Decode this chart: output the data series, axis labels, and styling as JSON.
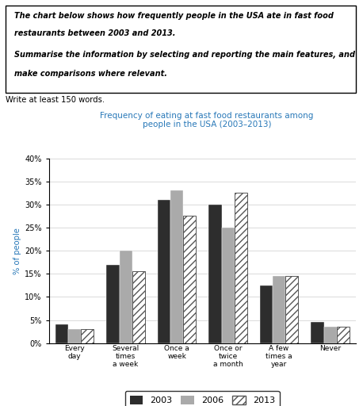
{
  "title_line1": "Frequency of eating at fast food restaurants among",
  "title_line2": "people in the USA (2003–2013)",
  "ylabel": "% of people",
  "categories": [
    "Every\nday",
    "Several\ntimes\na week",
    "Once a\nweek",
    "Once or\ntwice\na month",
    "A few\ntimes a\nyear",
    "Never"
  ],
  "data_2003": [
    4,
    17,
    31,
    30,
    12.5,
    4.5
  ],
  "data_2006": [
    3,
    20,
    33,
    25,
    14.5,
    3.5
  ],
  "data_2013": [
    3,
    15.5,
    27.5,
    32.5,
    14.5,
    3.5
  ],
  "color_2003": "#2d2d2d",
  "color_2006": "#aaaaaa",
  "color_2013_edge": "#555555",
  "ylim": [
    0,
    40
  ],
  "yticks": [
    0,
    5,
    10,
    15,
    20,
    25,
    30,
    35,
    40
  ],
  "ytick_labels": [
    "0%",
    "5%",
    "10%",
    "15%",
    "20%",
    "25%",
    "30%",
    "35%",
    "40%"
  ],
  "legend_labels": [
    "2003",
    "2006",
    "2013"
  ],
  "title_color": "#2878b8",
  "background_color": "#ffffff",
  "prompt_line1": "The chart below shows how frequently people in the USA ate in fast food",
  "prompt_line2": "restaurants between 2003 and 2013.",
  "prompt_line3": "Summarise the information by selecting and reporting the main features, and",
  "prompt_line4": "make comparisons where relevant.",
  "write_text": "Write at least 150 words."
}
